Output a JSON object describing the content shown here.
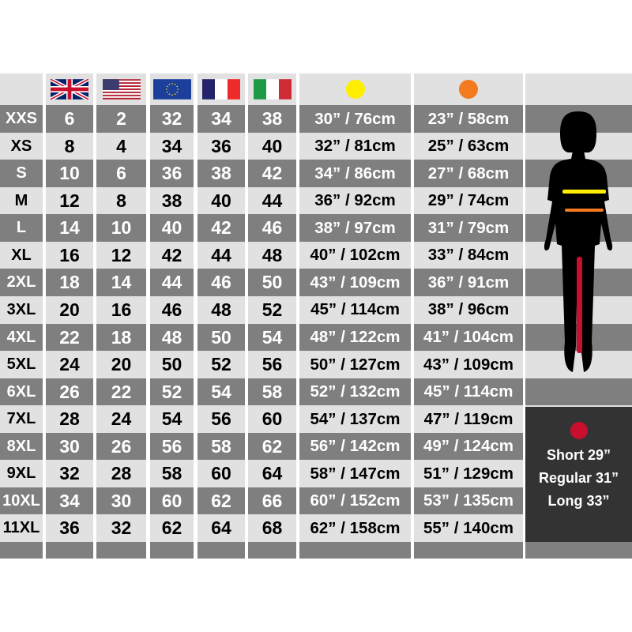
{
  "header": {
    "flags": [
      "uk-flag-icon",
      "us-flag-icon",
      "eu-flag-icon",
      "france-flag-icon",
      "italy-flag-icon"
    ],
    "waist_color": "#ffee00",
    "hip_color": "#f47a20"
  },
  "rows": [
    {
      "size": "XXS",
      "uk": "6",
      "us": "2",
      "eu": "32",
      "fr": "34",
      "it": "38",
      "waist": "30” / 76cm",
      "hip": "23” / 58cm"
    },
    {
      "size": "XS",
      "uk": "8",
      "us": "4",
      "eu": "34",
      "fr": "36",
      "it": "40",
      "waist": "32” / 81cm",
      "hip": "25” / 63cm"
    },
    {
      "size": "S",
      "uk": "10",
      "us": "6",
      "eu": "36",
      "fr": "38",
      "it": "42",
      "waist": "34” / 86cm",
      "hip": "27” / 68cm"
    },
    {
      "size": "M",
      "uk": "12",
      "us": "8",
      "eu": "38",
      "fr": "40",
      "it": "44",
      "waist": "36” / 92cm",
      "hip": "29” / 74cm"
    },
    {
      "size": "L",
      "uk": "14",
      "us": "10",
      "eu": "40",
      "fr": "42",
      "it": "46",
      "waist": "38” / 97cm",
      "hip": "31” / 79cm"
    },
    {
      "size": "XL",
      "uk": "16",
      "us": "12",
      "eu": "42",
      "fr": "44",
      "it": "48",
      "waist": "40” / 102cm",
      "hip": "33” / 84cm"
    },
    {
      "size": "2XL",
      "uk": "18",
      "us": "14",
      "eu": "44",
      "fr": "46",
      "it": "50",
      "waist": "43” / 109cm",
      "hip": "36” / 91cm"
    },
    {
      "size": "3XL",
      "uk": "20",
      "us": "16",
      "eu": "46",
      "fr": "48",
      "it": "52",
      "waist": "45” / 114cm",
      "hip": "38” / 96cm"
    },
    {
      "size": "4XL",
      "uk": "22",
      "us": "18",
      "eu": "48",
      "fr": "50",
      "it": "54",
      "waist": "48” / 122cm",
      "hip": "41” / 104cm"
    },
    {
      "size": "5XL",
      "uk": "24",
      "us": "20",
      "eu": "50",
      "fr": "52",
      "it": "56",
      "waist": "50” / 127cm",
      "hip": "43” / 109cm"
    },
    {
      "size": "6XL",
      "uk": "26",
      "us": "22",
      "eu": "52",
      "fr": "54",
      "it": "58",
      "waist": "52” / 132cm",
      "hip": "45” / 114cm"
    },
    {
      "size": "7XL",
      "uk": "28",
      "us": "24",
      "eu": "54",
      "fr": "56",
      "it": "60",
      "waist": "54” / 137cm",
      "hip": "47” / 119cm"
    },
    {
      "size": "8XL",
      "uk": "30",
      "us": "26",
      "eu": "56",
      "fr": "58",
      "it": "62",
      "waist": "56” / 142cm",
      "hip": "49” / 124cm"
    },
    {
      "size": "9XL",
      "uk": "32",
      "us": "28",
      "eu": "58",
      "fr": "60",
      "it": "64",
      "waist": "58” / 147cm",
      "hip": "51” / 129cm"
    },
    {
      "size": "10XL",
      "uk": "34",
      "us": "30",
      "eu": "60",
      "fr": "62",
      "it": "66",
      "waist": "60” / 152cm",
      "hip": "53” / 135cm"
    },
    {
      "size": "11XL",
      "uk": "36",
      "us": "32",
      "eu": "62",
      "fr": "64",
      "it": "68",
      "waist": "62” / 158cm",
      "hip": "55” / 140cm"
    }
  ],
  "leg_panel": {
    "inseam_color": "#c8102e",
    "lines": [
      "Short 29”",
      "Regular 31”",
      "Long 33”"
    ]
  }
}
